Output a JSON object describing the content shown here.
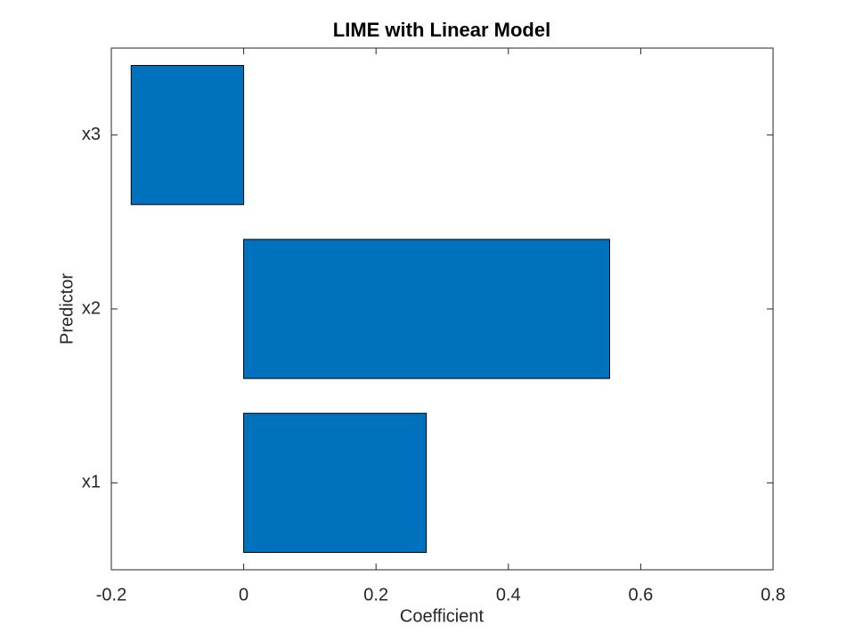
{
  "chart_data": {
    "type": "barh",
    "title": "LIME with Linear Model",
    "xlabel": "Coefficient",
    "ylabel": "Predictor",
    "categories": [
      "x1",
      "x2",
      "x3"
    ],
    "values": [
      0.276,
      0.553,
      -0.17
    ],
    "color": "#0072bd",
    "xlim": [
      -0.2,
      0.8
    ],
    "xticks": [
      -0.2,
      0,
      0.2,
      0.4,
      0.6,
      0.8
    ],
    "grid": false
  }
}
